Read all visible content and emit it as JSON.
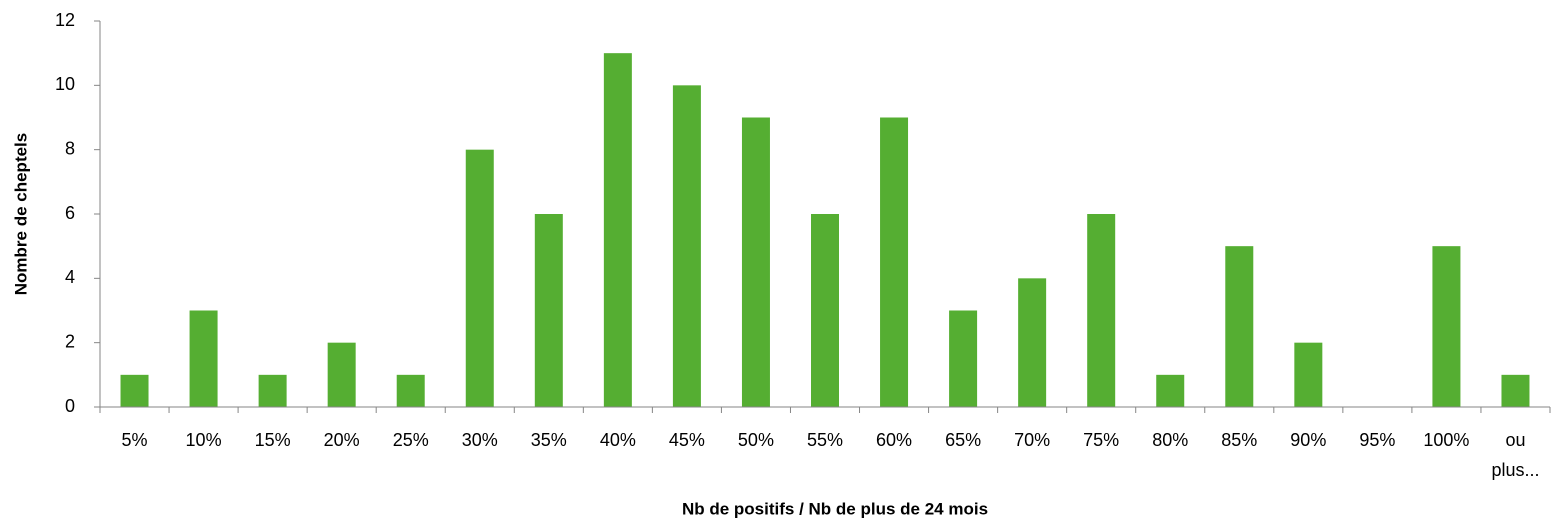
{
  "chart_data": {
    "type": "bar",
    "x_label": "Nb de positifs / Nb de plus de 24 mois",
    "y_label": "Nombre de cheptels",
    "categories": [
      "5%",
      "10%",
      "15%",
      "20%",
      "25%",
      "30%",
      "35%",
      "40%",
      "45%",
      "50%",
      "55%",
      "60%",
      "65%",
      "70%",
      "75%",
      "80%",
      "85%",
      "90%",
      "95%",
      "100%",
      "ou plus..."
    ],
    "values": [
      1,
      3,
      1,
      2,
      1,
      8,
      6,
      11,
      10,
      9,
      6,
      9,
      3,
      4,
      6,
      1,
      5,
      2,
      0,
      5,
      1
    ],
    "color": "#55ae32",
    "ylim": [
      0,
      12
    ],
    "yticks": [
      0,
      2,
      4,
      6,
      8,
      10,
      12
    ],
    "grid": false
  }
}
